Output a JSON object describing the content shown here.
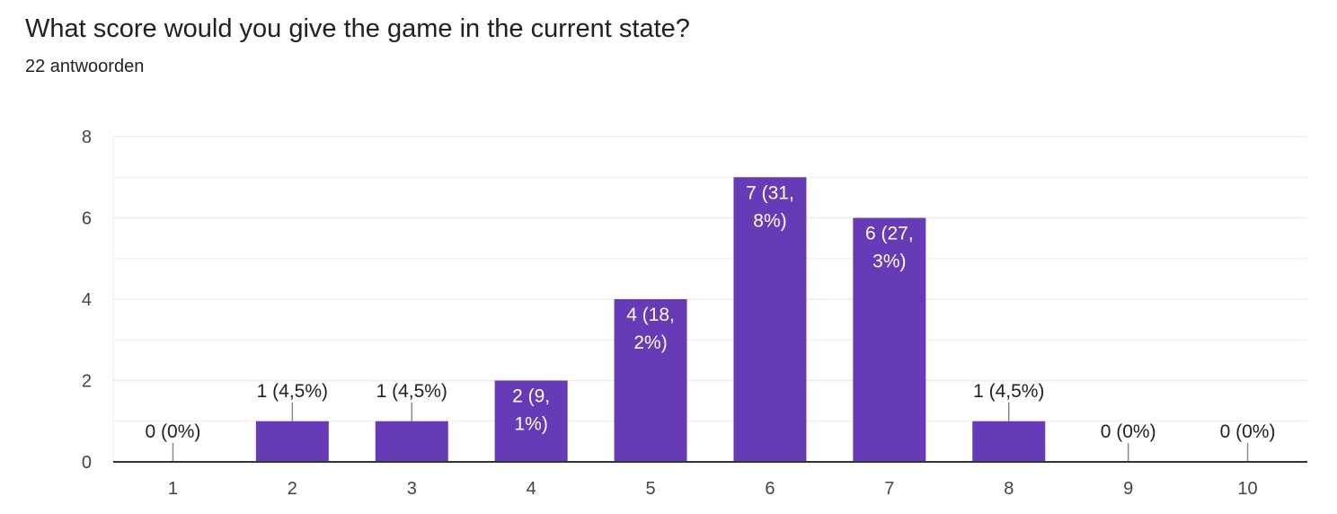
{
  "header": {
    "title": "What score would you give the game in the current state?",
    "subtitle": "22 antwoorden"
  },
  "colors": {
    "bar": "#673ab7",
    "gridline": "#ebebeb",
    "axis": "#333333",
    "label_outside": "#202124",
    "label_inside": "#ffffff",
    "leader": "#8a8a8a"
  },
  "chart_data": {
    "type": "bar",
    "categories": [
      "1",
      "2",
      "3",
      "4",
      "5",
      "6",
      "7",
      "8",
      "9",
      "10"
    ],
    "values": [
      0,
      1,
      1,
      2,
      4,
      7,
      6,
      1,
      0,
      0
    ],
    "data_labels": [
      [
        "0 (0%)"
      ],
      [
        "1 (4,5%)"
      ],
      [
        "1 (4,5%)"
      ],
      [
        "2 (9,",
        "1%)"
      ],
      [
        "4 (18,",
        "2%)"
      ],
      [
        "7 (31,",
        "8%)"
      ],
      [
        "6 (27,",
        "3%)"
      ],
      [
        "1 (4,5%)"
      ],
      [
        "0 (0%)"
      ],
      [
        "0 (0%)"
      ]
    ],
    "yticks": [
      0,
      2,
      4,
      6,
      8
    ],
    "ylim": [
      0,
      8
    ],
    "grid": true,
    "legend": "none"
  }
}
